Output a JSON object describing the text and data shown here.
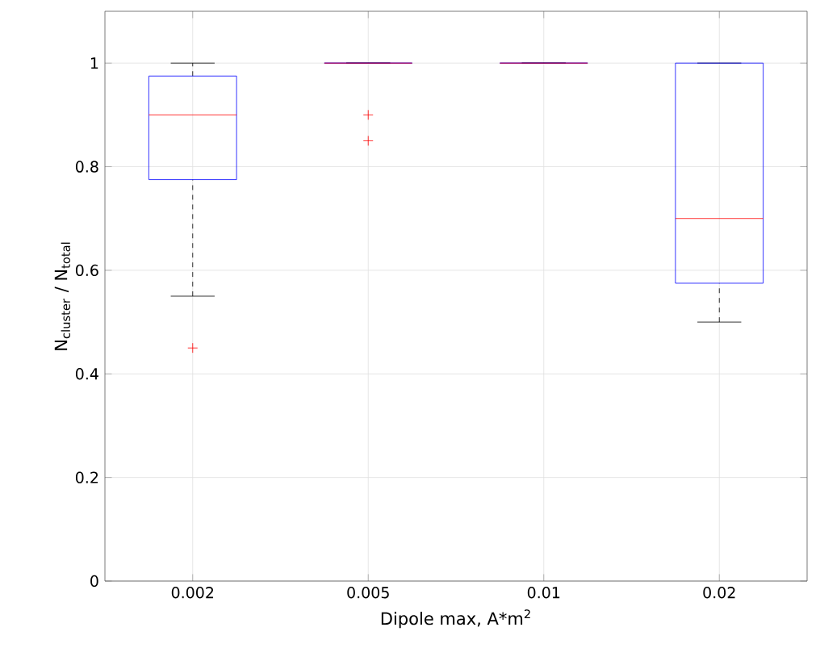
{
  "chart_data": {
    "type": "box",
    "xlabel": "Dipole max, A*m$^{2}$",
    "ylabel": "N$_{cluster}$ / N$_{total}$",
    "categories": [
      "0.002",
      "0.005",
      "0.01",
      "0.02"
    ],
    "series": [
      {
        "color": "#0000ff",
        "boxes": [
          {
            "low": 0.55,
            "q1": 0.775,
            "median": 0.9,
            "q3": 0.975,
            "high": 1.0,
            "outliers": [
              0.45
            ]
          },
          {
            "low": 1.0,
            "q1": 1.0,
            "median": 1.0,
            "q3": 1.0,
            "high": 1.0,
            "outliers": [
              0.9,
              0.85
            ]
          },
          {
            "low": 1.0,
            "q1": 1.0,
            "median": 1.0,
            "q3": 1.0,
            "high": 1.0
          },
          {
            "low": 0.5,
            "q1": 0.575,
            "median": 0.7,
            "q3": 1.0,
            "high": 1.0
          }
        ]
      }
    ],
    "ylim": [
      0,
      1.1
    ],
    "yticks": [
      0,
      0.2,
      0.4,
      0.6,
      0.8,
      1
    ],
    "grid": true,
    "marker": "cross"
  }
}
